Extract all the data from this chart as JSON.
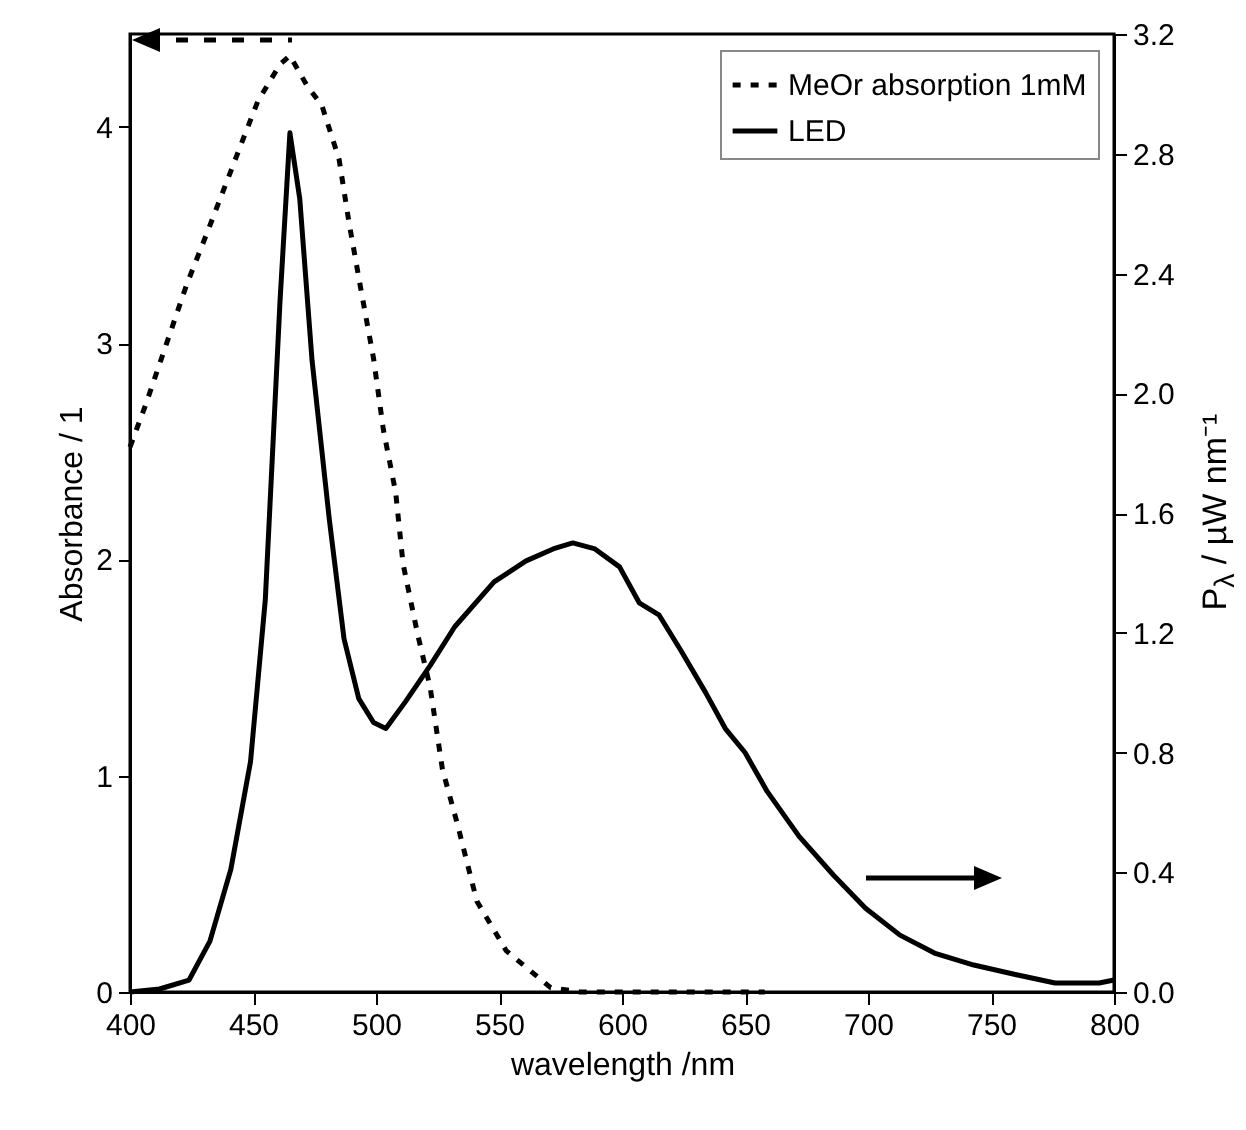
{
  "chart_data": {
    "type": "line",
    "xlabel": "wavelength /nm",
    "ylabel": "Absorbance / 1",
    "y2label": "P$_{λ}$ / µW nm⁻¹",
    "xlim": [
      400,
      800
    ],
    "xticks": [
      400,
      450,
      500,
      550,
      600,
      650,
      700,
      750,
      800
    ],
    "ylim": [
      0,
      4.43
    ],
    "yticks": [
      0,
      1,
      2,
      3,
      4
    ],
    "y2lim": [
      0,
      3.2
    ],
    "y2ticks": [
      {
        "value": 0,
        "label": "0.0"
      },
      {
        "value": 0.4,
        "label": "0.4"
      },
      {
        "value": 0.8,
        "label": "0.8"
      },
      {
        "value": 1.2,
        "label": "1.2"
      },
      {
        "value": 1.6,
        "label": "1.6"
      },
      {
        "value": 2,
        "label": "2.0"
      },
      {
        "value": 2.4,
        "label": "2.4"
      },
      {
        "value": 2.8,
        "label": "2.8"
      },
      {
        "value": 3.2,
        "label": "3.2"
      }
    ],
    "legend": "top right",
    "grid": false,
    "series": [
      {
        "name": "MeOr absorption 1mM",
        "color": "#000000",
        "line_style": "dashed",
        "x": [
          400,
          406.5,
          423,
          432,
          445.5,
          452,
          461,
          465,
          472,
          478,
          485,
          489,
          494,
          499,
          503,
          508,
          511,
          517,
          522,
          527,
          533,
          541,
          553,
          571,
          583,
          620,
          658
        ],
        "values": [
          2.52,
          2.72,
          3.27,
          3.53,
          3.93,
          4.12,
          4.29,
          4.33,
          4.19,
          4.1,
          3.85,
          3.56,
          3.24,
          2.93,
          2.6,
          2.31,
          1.98,
          1.65,
          1.41,
          1.03,
          0.78,
          0.42,
          0.19,
          0.02,
          0,
          0,
          0
        ]
      },
      {
        "name": "LED",
        "color": "#000000",
        "line_style": "solid",
        "axis": "y2",
        "x": [
          400,
          412,
          424,
          432.5,
          441,
          449,
          455,
          461,
          465,
          469,
          474,
          481,
          487,
          493,
          499,
          504,
          512,
          522,
          532,
          548,
          561,
          572,
          580,
          589,
          599,
          607,
          615,
          624,
          634,
          642,
          650,
          659,
          672,
          686,
          699,
          713,
          727,
          743,
          759,
          776,
          794,
          800
        ],
        "values": [
          0,
          0.01,
          0.04,
          0.17,
          0.41,
          0.77,
          1.31,
          2.31,
          2.87,
          2.65,
          2.11,
          1.58,
          1.18,
          0.98,
          0.9,
          0.88,
          0.97,
          1.09,
          1.22,
          1.37,
          1.44,
          1.48,
          1.5,
          1.48,
          1.42,
          1.3,
          1.26,
          1.14,
          1,
          0.88,
          0.8,
          0.67,
          0.52,
          0.39,
          0.28,
          0.19,
          0.13,
          0.09,
          0.06,
          0.03,
          0.03,
          0.04
        ]
      }
    ]
  }
}
